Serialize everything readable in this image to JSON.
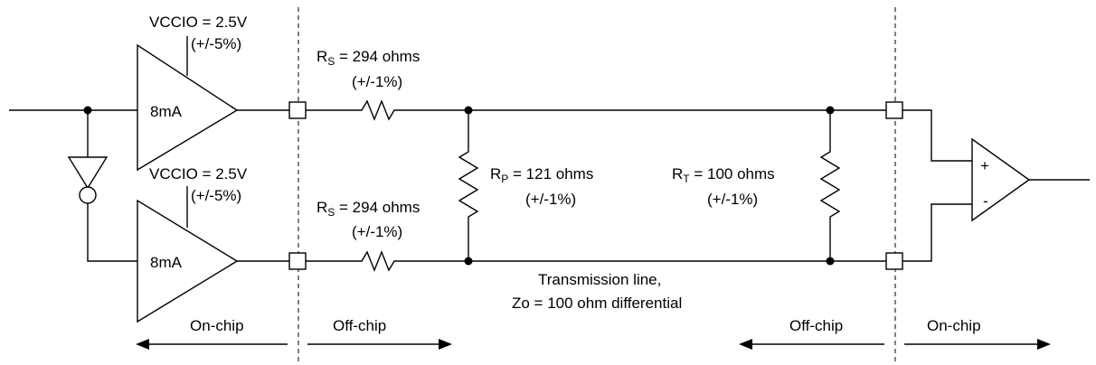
{
  "drivers": {
    "top": {
      "vccio_main": "VCCIO = 2.5V",
      "vccio_tol": "(+/-5%)",
      "drive": "8mA"
    },
    "bottom": {
      "vccio_main": "VCCIO = 2.5V",
      "vccio_tol": "(+/-5%)",
      "drive": "8mA"
    }
  },
  "rs_top": {
    "prefix": "R",
    "sub": "S",
    "value": " = 294 ohms",
    "tol": "(+/-1%)"
  },
  "rs_bottom": {
    "prefix": "R",
    "sub": "S",
    "value": " = 294 ohms",
    "tol": "(+/-1%)"
  },
  "rp": {
    "prefix": "R",
    "sub": "P",
    "value": " = 121 ohms",
    "tol": "(+/-1%)"
  },
  "rt": {
    "prefix": "R",
    "sub": "T",
    "value": " = 100 ohms",
    "tol": "(+/-1%)"
  },
  "line": {
    "line1": "Transmission line,",
    "line2": "Zo = 100 ohm differential"
  },
  "receiver": {
    "plus": "+",
    "minus": "-"
  },
  "zones": {
    "on_chip_left": "On-chip",
    "off_chip_left": "Off-chip",
    "off_chip_right": "Off-chip",
    "on_chip_right": "On-chip"
  }
}
